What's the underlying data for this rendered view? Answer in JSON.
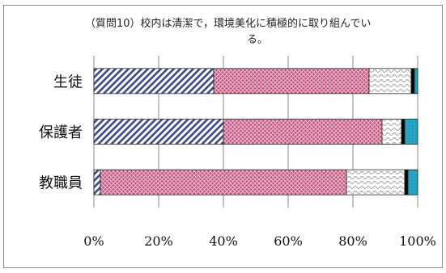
{
  "chart_data": {
    "type": "bar",
    "orientation": "horizontal",
    "stacked": true,
    "percent": true,
    "title_lines": [
      "（質問10）校内は清潔で，環境美化に積極的に取り組んでい",
      "る。"
    ],
    "categories": [
      "生徒",
      "保護者",
      "教職員"
    ],
    "series": [
      {
        "values": [
          37,
          40,
          2
        ],
        "color": "#3f4a8a",
        "pattern": "diagonal-stripes"
      },
      {
        "values": [
          48,
          49,
          76
        ],
        "color": "#b8336a",
        "pattern": "crosshatch-pink"
      },
      {
        "values": [
          13,
          6,
          18
        ],
        "color": "#9a9a9a",
        "pattern": "wavy"
      },
      {
        "values": [
          1,
          1,
          1
        ],
        "color": "#000000",
        "pattern": "solid"
      },
      {
        "values": [
          1,
          4,
          3
        ],
        "color": "#2aa7c4",
        "pattern": "grid-blue"
      }
    ],
    "xlim": [
      0,
      100
    ],
    "x_ticks": [
      "0%",
      "20%",
      "40%",
      "60%",
      "80%",
      "100%"
    ],
    "grid": true,
    "legend": "none"
  }
}
